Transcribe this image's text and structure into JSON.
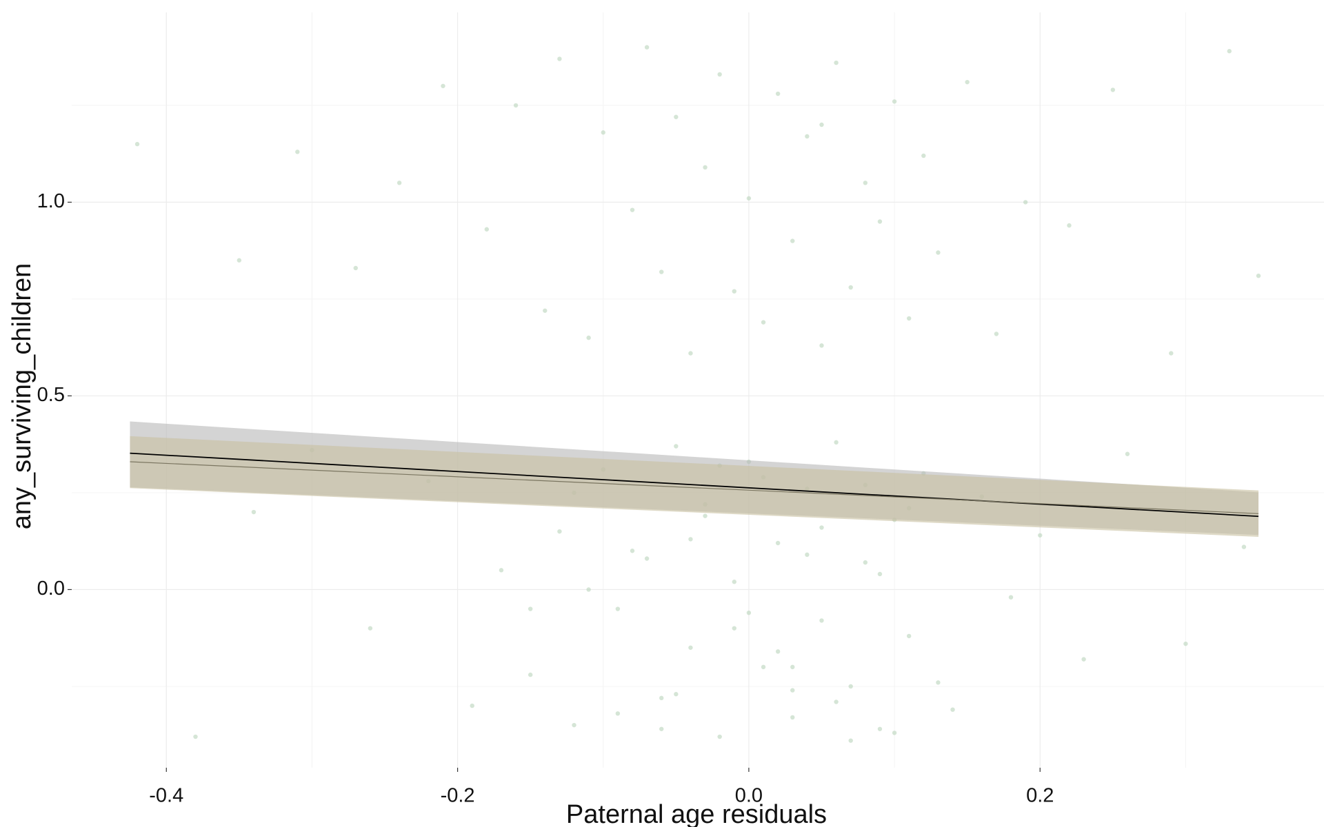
{
  "chart_data": {
    "type": "scatter",
    "x_label": "Paternal age residuals",
    "y_label": "any_surviving_children",
    "xlim": [
      -0.465,
      0.395
    ],
    "ylim": [
      -0.46,
      1.49
    ],
    "xticks": [
      -0.4,
      -0.2,
      {
        "value": 0,
        "label": "0.0"
      },
      0.2
    ],
    "yticks": [
      {
        "value": 0,
        "label": "0.0"
      },
      0.5,
      {
        "value": 1,
        "label": "1.0"
      }
    ],
    "minor_xticks": [
      -0.3,
      -0.1,
      0.1,
      0.3
    ],
    "minor_yticks": [
      -0.25,
      0.25,
      0.75,
      1.25
    ],
    "grid": true,
    "points": {
      "color": "#b9d3bb",
      "x": [
        -0.42,
        -0.35,
        -0.31,
        -0.27,
        -0.24,
        -0.21,
        -0.18,
        -0.16,
        -0.14,
        -0.13,
        -0.11,
        -0.1,
        -0.08,
        -0.07,
        -0.06,
        -0.05,
        -0.04,
        -0.03,
        -0.02,
        -0.01,
        0.0,
        0.01,
        0.02,
        0.03,
        0.04,
        0.05,
        0.05,
        0.06,
        0.07,
        0.08,
        0.09,
        0.1,
        0.11,
        0.12,
        0.13,
        0.15,
        0.17,
        0.19,
        0.22,
        0.25,
        0.29,
        0.33,
        0.35,
        -0.38,
        -0.34,
        -0.3,
        -0.26,
        -0.22,
        -0.19,
        -0.17,
        -0.15,
        -0.13,
        -0.12,
        -0.1,
        -0.09,
        -0.08,
        -0.06,
        -0.05,
        -0.04,
        -0.03,
        -0.02,
        -0.01,
        0.0,
        0.01,
        0.02,
        0.03,
        0.04,
        0.05,
        0.06,
        0.07,
        0.08,
        0.09,
        0.1,
        0.11,
        0.12,
        0.14,
        0.16,
        0.18,
        0.2,
        0.23,
        0.26,
        0.3,
        0.34,
        -0.15,
        -0.12,
        -0.09,
        -0.07,
        -0.05,
        -0.03,
        -0.01,
        0.01,
        0.03,
        0.05,
        0.07,
        0.09,
        0.11,
        0.13,
        -0.11,
        -0.06,
        -0.02,
        0.02,
        0.04,
        0.06,
        0.08,
        0.1,
        -0.04,
        0.0,
        0.03
      ],
      "y": [
        1.15,
        0.85,
        1.13,
        0.83,
        1.05,
        1.3,
        0.93,
        1.25,
        0.72,
        1.37,
        0.65,
        1.18,
        0.98,
        1.4,
        0.82,
        1.22,
        0.61,
        1.09,
        1.33,
        0.77,
        1.01,
        0.69,
        1.28,
        0.9,
        1.17,
        0.63,
        1.2,
        1.36,
        0.78,
        1.05,
        0.95,
        1.26,
        0.7,
        1.12,
        0.87,
        1.31,
        0.66,
        1.0,
        0.94,
        1.29,
        0.61,
        1.39,
        0.81,
        -0.38,
        0.2,
        0.36,
        -0.1,
        0.28,
        -0.3,
        0.05,
        -0.22,
        0.15,
        -0.35,
        0.31,
        -0.05,
        0.1,
        -0.28,
        0.37,
        -0.15,
        0.22,
        -0.38,
        0.02,
        0.33,
        -0.2,
        0.12,
        -0.33,
        0.26,
        -0.08,
        0.38,
        -0.25,
        0.07,
        -0.36,
        0.18,
        -0.12,
        0.3,
        -0.31,
        0.24,
        -0.02,
        0.14,
        -0.18,
        0.35,
        -0.14,
        0.11,
        -0.05,
        0.25,
        -0.32,
        0.08,
        -0.27,
        0.19,
        -0.1,
        0.29,
        -0.2,
        0.16,
        -0.39,
        0.04,
        0.21,
        -0.24,
        0.0,
        -0.36,
        0.32,
        -0.16,
        0.09,
        -0.29,
        0.27,
        -0.37,
        0.13,
        -0.06,
        -0.26
      ]
    },
    "lines": [
      {
        "color": "#000000",
        "band_color": "#b8b8b8",
        "x": [
          -0.425,
          0.35
        ],
        "y": [
          0.352,
          0.189
        ],
        "lower": [
          0.264,
          0.141
        ],
        "upper": [
          0.434,
          0.251
        ]
      },
      {
        "color": "#7a7560",
        "band_color": "#c8bfa0",
        "x": [
          -0.425,
          0.35
        ],
        "y": [
          0.33,
          0.196
        ],
        "lower": [
          0.262,
          0.136
        ],
        "upper": [
          0.396,
          0.256
        ]
      }
    ]
  }
}
